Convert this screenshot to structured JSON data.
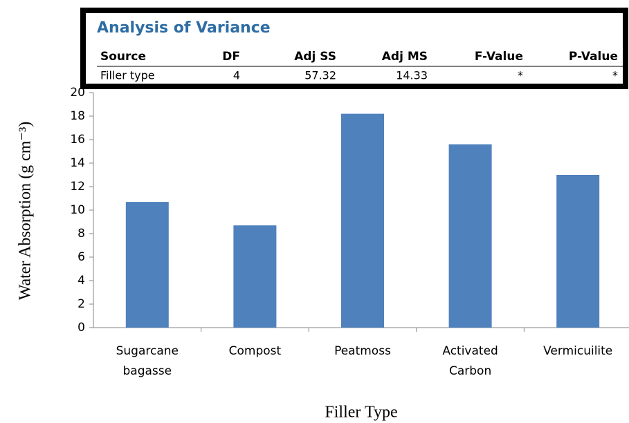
{
  "chart_data": {
    "type": "bar",
    "ylabel": "Water Absorption (g cm⁻³)",
    "xlabel": "Filler Type",
    "categories": [
      "Sugarcane bagasse",
      "Compost",
      "Peatmoss",
      "Activated Carbon",
      "Vermicuilite"
    ],
    "values": [
      10.7,
      8.7,
      18.2,
      15.6,
      13.0
    ],
    "color": "#4f81bd",
    "ylim": [
      0,
      20
    ],
    "yticks": [
      0,
      2,
      4,
      6,
      8,
      10,
      12,
      14,
      16,
      18,
      20
    ],
    "grid": false
  },
  "table": {
    "title": "Analysis of Variance",
    "columns": [
      "Source",
      "DF",
      "Adj SS",
      "Adj MS",
      "F-Value",
      "P-Value"
    ],
    "rows": [
      [
        "Filler type",
        4,
        57.32,
        14.33,
        "*",
        "*"
      ]
    ]
  }
}
